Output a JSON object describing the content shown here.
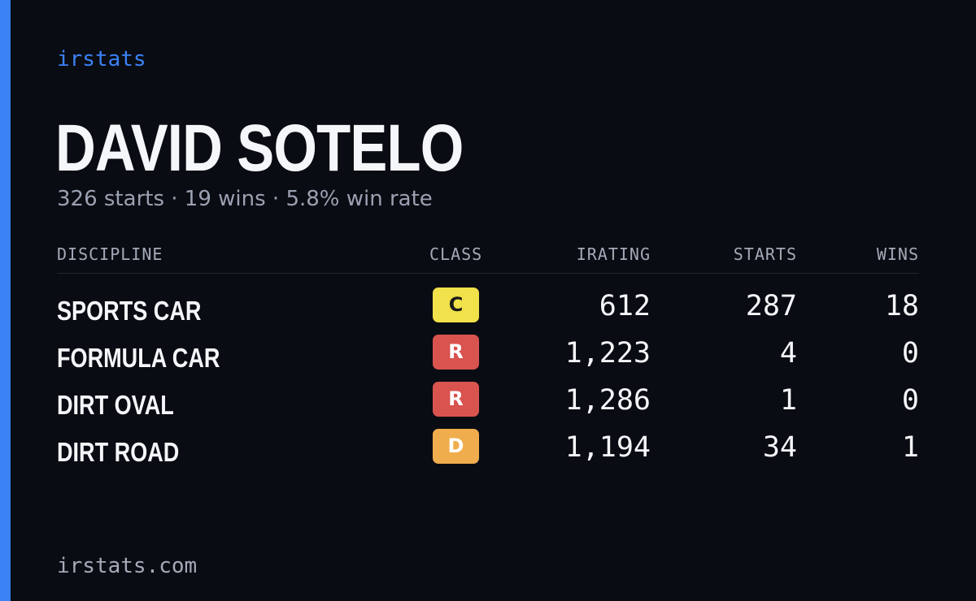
{
  "brand": "irstats",
  "player": {
    "name": "DAVID SOTELO",
    "summary": "326 starts · 19 wins · 5.8% win rate"
  },
  "table": {
    "headers": {
      "discipline": "DISCIPLINE",
      "class": "CLASS",
      "irating": "IRATING",
      "starts": "STARTS",
      "wins": "WINS"
    },
    "rows": [
      {
        "discipline": "SPORTS CAR",
        "class": "C",
        "class_color": "#f1e14a",
        "class_text_color": "#1a1a1a",
        "irating": "612",
        "starts": "287",
        "wins": "18"
      },
      {
        "discipline": "FORMULA CAR",
        "class": "R",
        "class_color": "#d9534f",
        "class_text_color": "#ffffff",
        "irating": "1,223",
        "starts": "4",
        "wins": "0"
      },
      {
        "discipline": "DIRT OVAL",
        "class": "R",
        "class_color": "#d9534f",
        "class_text_color": "#ffffff",
        "irating": "1,286",
        "starts": "1",
        "wins": "0"
      },
      {
        "discipline": "DIRT ROAD",
        "class": "D",
        "class_color": "#f0ad4e",
        "class_text_color": "#ffffff",
        "irating": "1,194",
        "starts": "34",
        "wins": "1"
      }
    ]
  },
  "footer": {
    "url": "irstats.com"
  },
  "colors": {
    "background": "#0a0c13",
    "accent": "#3b82f6",
    "muted_text": "#9aa1b1"
  }
}
